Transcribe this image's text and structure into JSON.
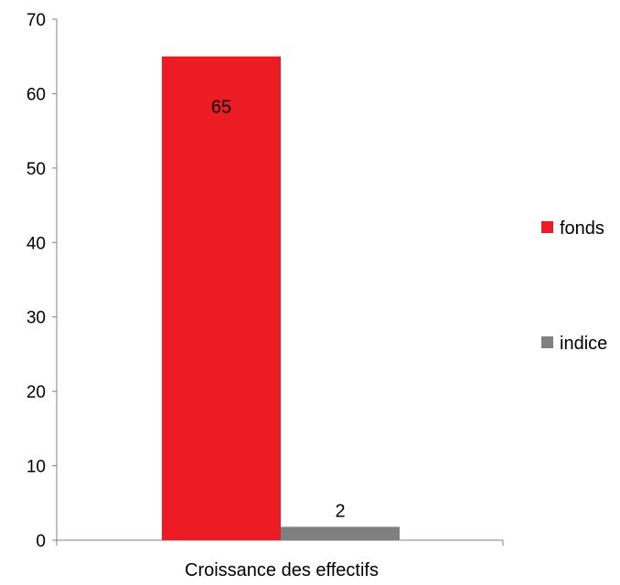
{
  "chart_data": {
    "type": "bar",
    "categories": [
      "Croissance des effectifs"
    ],
    "series": [
      {
        "name": "fonds",
        "values": [
          65
        ],
        "color": "#ED1C24"
      },
      {
        "name": "indice",
        "values": [
          2
        ],
        "color": "#808080"
      }
    ],
    "bar_heights": [
      65,
      1.8
    ],
    "data_labels": [
      "65",
      "2"
    ],
    "ylim": [
      0,
      70
    ],
    "yticks": [
      0,
      10,
      20,
      30,
      40,
      50,
      60,
      70
    ],
    "title": "",
    "xlabel": "",
    "ylabel": "",
    "grid": false,
    "legend": "right"
  }
}
